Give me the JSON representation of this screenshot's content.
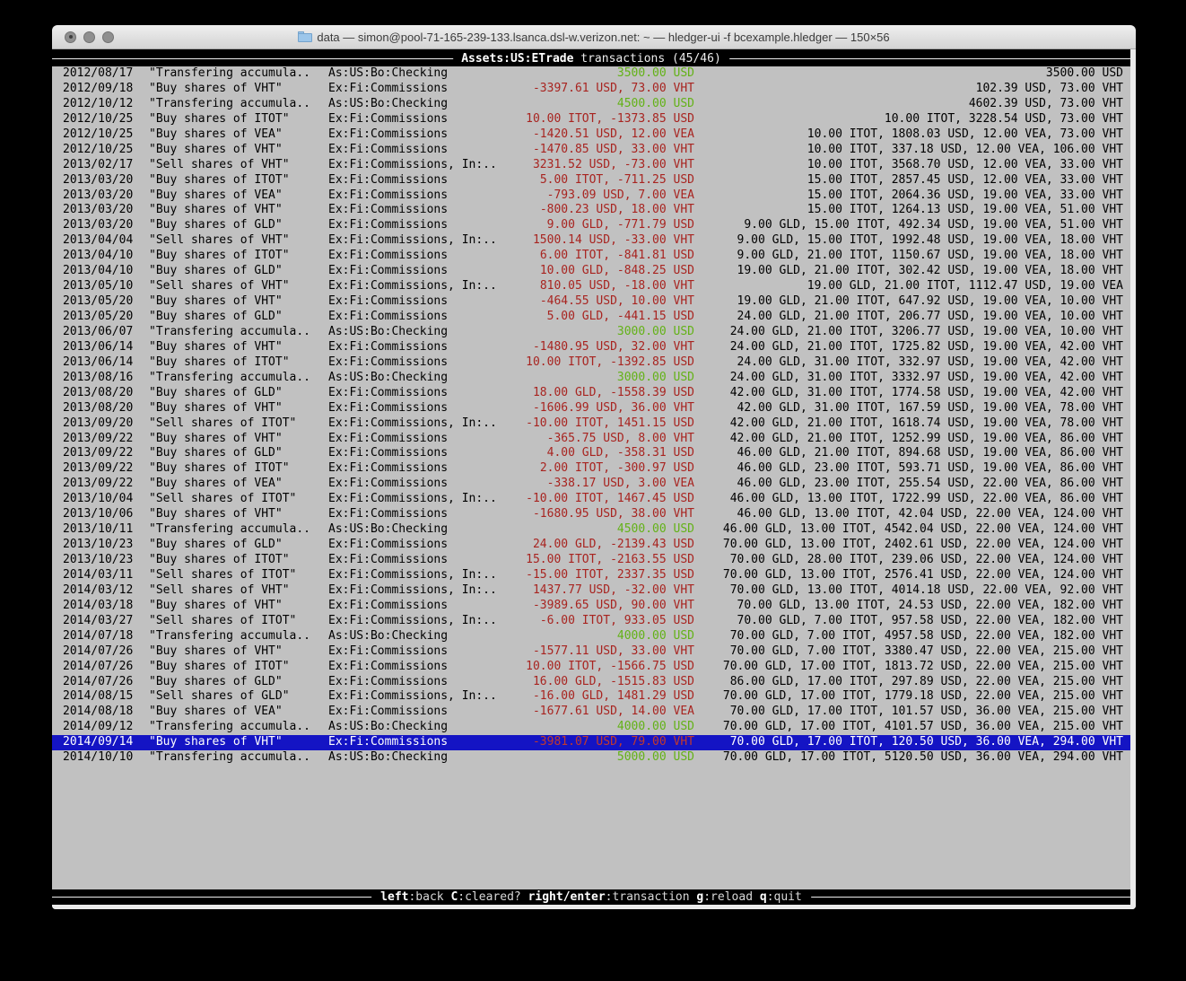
{
  "window": {
    "title": "data — simon@pool-71-165-239-133.lsanca.dsl-w.verizon.net: ~ — hledger-ui -f bcexample.hledger — 150×56",
    "buttons": [
      "close",
      "minimize",
      "zoom"
    ]
  },
  "screen": {
    "title_account": "Assets:US:ETrade",
    "title_rest": " transactions (45/46)",
    "position": "45/46"
  },
  "footer": {
    "hints": [
      {
        "key": "left",
        "label": "back"
      },
      {
        "key": "C",
        "label": "cleared?"
      },
      {
        "key": "right/enter",
        "label": "transaction"
      },
      {
        "key": "g",
        "label": "reload"
      },
      {
        "key": "q",
        "label": "quit"
      }
    ]
  },
  "colors": {
    "content_bg": "#c1c1c1",
    "band_bg": "#000000",
    "rule": "#ececec",
    "amount_negative": "#a82420",
    "amount_positive": "#63b217",
    "selected_bg": "#1414c4",
    "selected_fg": "#ffffff"
  },
  "table": {
    "columns": [
      "date",
      "description",
      "account",
      "change",
      "balance"
    ],
    "selected_index": 44,
    "rows": [
      {
        "date": "2012/08/17",
        "description": "\"Transfering accumula..",
        "account": "As:US:Bo:Checking",
        "change": "3500.00 USD",
        "change_color": "green",
        "balance": "3500.00 USD"
      },
      {
        "date": "2012/09/18",
        "description": "\"Buy shares of VHT\"",
        "account": "Ex:Fi:Commissions",
        "change": "-3397.61 USD, 73.00 VHT",
        "change_color": "red",
        "balance": "102.39 USD, 73.00 VHT"
      },
      {
        "date": "2012/10/12",
        "description": "\"Transfering accumula..",
        "account": "As:US:Bo:Checking",
        "change": "4500.00 USD",
        "change_color": "green",
        "balance": "4602.39 USD, 73.00 VHT"
      },
      {
        "date": "2012/10/25",
        "description": "\"Buy shares of ITOT\"",
        "account": "Ex:Fi:Commissions",
        "change": "10.00 ITOT, -1373.85 USD",
        "change_color": "red",
        "balance": "10.00 ITOT, 3228.54 USD, 73.00 VHT"
      },
      {
        "date": "2012/10/25",
        "description": "\"Buy shares of VEA\"",
        "account": "Ex:Fi:Commissions",
        "change": "-1420.51 USD, 12.00 VEA",
        "change_color": "red",
        "balance": "10.00 ITOT, 1808.03 USD, 12.00 VEA, 73.00 VHT"
      },
      {
        "date": "2012/10/25",
        "description": "\"Buy shares of VHT\"",
        "account": "Ex:Fi:Commissions",
        "change": "-1470.85 USD, 33.00 VHT",
        "change_color": "red",
        "balance": "10.00 ITOT, 337.18 USD, 12.00 VEA, 106.00 VHT"
      },
      {
        "date": "2013/02/17",
        "description": "\"Sell shares of VHT\"",
        "account": "Ex:Fi:Commissions, In:..",
        "change": "3231.52 USD, -73.00 VHT",
        "change_color": "red",
        "balance": "10.00 ITOT, 3568.70 USD, 12.00 VEA, 33.00 VHT"
      },
      {
        "date": "2013/03/20",
        "description": "\"Buy shares of ITOT\"",
        "account": "Ex:Fi:Commissions",
        "change": "5.00 ITOT, -711.25 USD",
        "change_color": "red",
        "balance": "15.00 ITOT, 2857.45 USD, 12.00 VEA, 33.00 VHT"
      },
      {
        "date": "2013/03/20",
        "description": "\"Buy shares of VEA\"",
        "account": "Ex:Fi:Commissions",
        "change": "-793.09 USD, 7.00 VEA",
        "change_color": "red",
        "balance": "15.00 ITOT, 2064.36 USD, 19.00 VEA, 33.00 VHT"
      },
      {
        "date": "2013/03/20",
        "description": "\"Buy shares of VHT\"",
        "account": "Ex:Fi:Commissions",
        "change": "-800.23 USD, 18.00 VHT",
        "change_color": "red",
        "balance": "15.00 ITOT, 1264.13 USD, 19.00 VEA, 51.00 VHT"
      },
      {
        "date": "2013/03/20",
        "description": "\"Buy shares of GLD\"",
        "account": "Ex:Fi:Commissions",
        "change": "9.00 GLD, -771.79 USD",
        "change_color": "red",
        "balance": "9.00 GLD, 15.00 ITOT, 492.34 USD, 19.00 VEA, 51.00 VHT"
      },
      {
        "date": "2013/04/04",
        "description": "\"Sell shares of VHT\"",
        "account": "Ex:Fi:Commissions, In:..",
        "change": "1500.14 USD, -33.00 VHT",
        "change_color": "red",
        "balance": "9.00 GLD, 15.00 ITOT, 1992.48 USD, 19.00 VEA, 18.00 VHT"
      },
      {
        "date": "2013/04/10",
        "description": "\"Buy shares of ITOT\"",
        "account": "Ex:Fi:Commissions",
        "change": "6.00 ITOT, -841.81 USD",
        "change_color": "red",
        "balance": "9.00 GLD, 21.00 ITOT, 1150.67 USD, 19.00 VEA, 18.00 VHT"
      },
      {
        "date": "2013/04/10",
        "description": "\"Buy shares of GLD\"",
        "account": "Ex:Fi:Commissions",
        "change": "10.00 GLD, -848.25 USD",
        "change_color": "red",
        "balance": "19.00 GLD, 21.00 ITOT, 302.42 USD, 19.00 VEA, 18.00 VHT"
      },
      {
        "date": "2013/05/10",
        "description": "\"Sell shares of VHT\"",
        "account": "Ex:Fi:Commissions, In:..",
        "change": "810.05 USD, -18.00 VHT",
        "change_color": "red",
        "balance": "19.00 GLD, 21.00 ITOT, 1112.47 USD, 19.00 VEA"
      },
      {
        "date": "2013/05/20",
        "description": "\"Buy shares of VHT\"",
        "account": "Ex:Fi:Commissions",
        "change": "-464.55 USD, 10.00 VHT",
        "change_color": "red",
        "balance": "19.00 GLD, 21.00 ITOT, 647.92 USD, 19.00 VEA, 10.00 VHT"
      },
      {
        "date": "2013/05/20",
        "description": "\"Buy shares of GLD\"",
        "account": "Ex:Fi:Commissions",
        "change": "5.00 GLD, -441.15 USD",
        "change_color": "red",
        "balance": "24.00 GLD, 21.00 ITOT, 206.77 USD, 19.00 VEA, 10.00 VHT"
      },
      {
        "date": "2013/06/07",
        "description": "\"Transfering accumula..",
        "account": "As:US:Bo:Checking",
        "change": "3000.00 USD",
        "change_color": "green",
        "balance": "24.00 GLD, 21.00 ITOT, 3206.77 USD, 19.00 VEA, 10.00 VHT"
      },
      {
        "date": "2013/06/14",
        "description": "\"Buy shares of VHT\"",
        "account": "Ex:Fi:Commissions",
        "change": "-1480.95 USD, 32.00 VHT",
        "change_color": "red",
        "balance": "24.00 GLD, 21.00 ITOT, 1725.82 USD, 19.00 VEA, 42.00 VHT"
      },
      {
        "date": "2013/06/14",
        "description": "\"Buy shares of ITOT\"",
        "account": "Ex:Fi:Commissions",
        "change": "10.00 ITOT, -1392.85 USD",
        "change_color": "red",
        "balance": "24.00 GLD, 31.00 ITOT, 332.97 USD, 19.00 VEA, 42.00 VHT"
      },
      {
        "date": "2013/08/16",
        "description": "\"Transfering accumula..",
        "account": "As:US:Bo:Checking",
        "change": "3000.00 USD",
        "change_color": "green",
        "balance": "24.00 GLD, 31.00 ITOT, 3332.97 USD, 19.00 VEA, 42.00 VHT"
      },
      {
        "date": "2013/08/20",
        "description": "\"Buy shares of GLD\"",
        "account": "Ex:Fi:Commissions",
        "change": "18.00 GLD, -1558.39 USD",
        "change_color": "red",
        "balance": "42.00 GLD, 31.00 ITOT, 1774.58 USD, 19.00 VEA, 42.00 VHT"
      },
      {
        "date": "2013/08/20",
        "description": "\"Buy shares of VHT\"",
        "account": "Ex:Fi:Commissions",
        "change": "-1606.99 USD, 36.00 VHT",
        "change_color": "red",
        "balance": "42.00 GLD, 31.00 ITOT, 167.59 USD, 19.00 VEA, 78.00 VHT"
      },
      {
        "date": "2013/09/20",
        "description": "\"Sell shares of ITOT\"",
        "account": "Ex:Fi:Commissions, In:..",
        "change": "-10.00 ITOT, 1451.15 USD",
        "change_color": "red",
        "balance": "42.00 GLD, 21.00 ITOT, 1618.74 USD, 19.00 VEA, 78.00 VHT"
      },
      {
        "date": "2013/09/22",
        "description": "\"Buy shares of VHT\"",
        "account": "Ex:Fi:Commissions",
        "change": "-365.75 USD, 8.00 VHT",
        "change_color": "red",
        "balance": "42.00 GLD, 21.00 ITOT, 1252.99 USD, 19.00 VEA, 86.00 VHT"
      },
      {
        "date": "2013/09/22",
        "description": "\"Buy shares of GLD\"",
        "account": "Ex:Fi:Commissions",
        "change": "4.00 GLD, -358.31 USD",
        "change_color": "red",
        "balance": "46.00 GLD, 21.00 ITOT, 894.68 USD, 19.00 VEA, 86.00 VHT"
      },
      {
        "date": "2013/09/22",
        "description": "\"Buy shares of ITOT\"",
        "account": "Ex:Fi:Commissions",
        "change": "2.00 ITOT, -300.97 USD",
        "change_color": "red",
        "balance": "46.00 GLD, 23.00 ITOT, 593.71 USD, 19.00 VEA, 86.00 VHT"
      },
      {
        "date": "2013/09/22",
        "description": "\"Buy shares of VEA\"",
        "account": "Ex:Fi:Commissions",
        "change": "-338.17 USD, 3.00 VEA",
        "change_color": "red",
        "balance": "46.00 GLD, 23.00 ITOT, 255.54 USD, 22.00 VEA, 86.00 VHT"
      },
      {
        "date": "2013/10/04",
        "description": "\"Sell shares of ITOT\"",
        "account": "Ex:Fi:Commissions, In:..",
        "change": "-10.00 ITOT, 1467.45 USD",
        "change_color": "red",
        "balance": "46.00 GLD, 13.00 ITOT, 1722.99 USD, 22.00 VEA, 86.00 VHT"
      },
      {
        "date": "2013/10/06",
        "description": "\"Buy shares of VHT\"",
        "account": "Ex:Fi:Commissions",
        "change": "-1680.95 USD, 38.00 VHT",
        "change_color": "red",
        "balance": "46.00 GLD, 13.00 ITOT, 42.04 USD, 22.00 VEA, 124.00 VHT"
      },
      {
        "date": "2013/10/11",
        "description": "\"Transfering accumula..",
        "account": "As:US:Bo:Checking",
        "change": "4500.00 USD",
        "change_color": "green",
        "balance": "46.00 GLD, 13.00 ITOT, 4542.04 USD, 22.00 VEA, 124.00 VHT"
      },
      {
        "date": "2013/10/23",
        "description": "\"Buy shares of GLD\"",
        "account": "Ex:Fi:Commissions",
        "change": "24.00 GLD, -2139.43 USD",
        "change_color": "red",
        "balance": "70.00 GLD, 13.00 ITOT, 2402.61 USD, 22.00 VEA, 124.00 VHT"
      },
      {
        "date": "2013/10/23",
        "description": "\"Buy shares of ITOT\"",
        "account": "Ex:Fi:Commissions",
        "change": "15.00 ITOT, -2163.55 USD",
        "change_color": "red",
        "balance": "70.00 GLD, 28.00 ITOT, 239.06 USD, 22.00 VEA, 124.00 VHT"
      },
      {
        "date": "2014/03/11",
        "description": "\"Sell shares of ITOT\"",
        "account": "Ex:Fi:Commissions, In:..",
        "change": "-15.00 ITOT, 2337.35 USD",
        "change_color": "red",
        "balance": "70.00 GLD, 13.00 ITOT, 2576.41 USD, 22.00 VEA, 124.00 VHT"
      },
      {
        "date": "2014/03/12",
        "description": "\"Sell shares of VHT\"",
        "account": "Ex:Fi:Commissions, In:..",
        "change": "1437.77 USD, -32.00 VHT",
        "change_color": "red",
        "balance": "70.00 GLD, 13.00 ITOT, 4014.18 USD, 22.00 VEA, 92.00 VHT"
      },
      {
        "date": "2014/03/18",
        "description": "\"Buy shares of VHT\"",
        "account": "Ex:Fi:Commissions",
        "change": "-3989.65 USD, 90.00 VHT",
        "change_color": "red",
        "balance": "70.00 GLD, 13.00 ITOT, 24.53 USD, 22.00 VEA, 182.00 VHT"
      },
      {
        "date": "2014/03/27",
        "description": "\"Sell shares of ITOT\"",
        "account": "Ex:Fi:Commissions, In:..",
        "change": "-6.00 ITOT, 933.05 USD",
        "change_color": "red",
        "balance": "70.00 GLD, 7.00 ITOT, 957.58 USD, 22.00 VEA, 182.00 VHT"
      },
      {
        "date": "2014/07/18",
        "description": "\"Transfering accumula..",
        "account": "As:US:Bo:Checking",
        "change": "4000.00 USD",
        "change_color": "green",
        "balance": "70.00 GLD, 7.00 ITOT, 4957.58 USD, 22.00 VEA, 182.00 VHT"
      },
      {
        "date": "2014/07/26",
        "description": "\"Buy shares of VHT\"",
        "account": "Ex:Fi:Commissions",
        "change": "-1577.11 USD, 33.00 VHT",
        "change_color": "red",
        "balance": "70.00 GLD, 7.00 ITOT, 3380.47 USD, 22.00 VEA, 215.00 VHT"
      },
      {
        "date": "2014/07/26",
        "description": "\"Buy shares of ITOT\"",
        "account": "Ex:Fi:Commissions",
        "change": "10.00 ITOT, -1566.75 USD",
        "change_color": "red",
        "balance": "70.00 GLD, 17.00 ITOT, 1813.72 USD, 22.00 VEA, 215.00 VHT"
      },
      {
        "date": "2014/07/26",
        "description": "\"Buy shares of GLD\"",
        "account": "Ex:Fi:Commissions",
        "change": "16.00 GLD, -1515.83 USD",
        "change_color": "red",
        "balance": "86.00 GLD, 17.00 ITOT, 297.89 USD, 22.00 VEA, 215.00 VHT"
      },
      {
        "date": "2014/08/15",
        "description": "\"Sell shares of GLD\"",
        "account": "Ex:Fi:Commissions, In:..",
        "change": "-16.00 GLD, 1481.29 USD",
        "change_color": "red",
        "balance": "70.00 GLD, 17.00 ITOT, 1779.18 USD, 22.00 VEA, 215.00 VHT"
      },
      {
        "date": "2014/08/18",
        "description": "\"Buy shares of VEA\"",
        "account": "Ex:Fi:Commissions",
        "change": "-1677.61 USD, 14.00 VEA",
        "change_color": "red",
        "balance": "70.00 GLD, 17.00 ITOT, 101.57 USD, 36.00 VEA, 215.00 VHT"
      },
      {
        "date": "2014/09/12",
        "description": "\"Transfering accumula..",
        "account": "As:US:Bo:Checking",
        "change": "4000.00 USD",
        "change_color": "green",
        "balance": "70.00 GLD, 17.00 ITOT, 4101.57 USD, 36.00 VEA, 215.00 VHT"
      },
      {
        "date": "2014/09/14",
        "description": "\"Buy shares of VHT\"",
        "account": "Ex:Fi:Commissions",
        "change": "-3981.07 USD, 79.00 VHT",
        "change_color": "red",
        "balance": "70.00 GLD, 17.00 ITOT, 120.50 USD, 36.00 VEA, 294.00 VHT"
      },
      {
        "date": "2014/10/10",
        "description": "\"Transfering accumula..",
        "account": "As:US:Bo:Checking",
        "change": "5000.00 USD",
        "change_color": "green",
        "balance": "70.00 GLD, 17.00 ITOT, 5120.50 USD, 36.00 VEA, 294.00 VHT"
      }
    ]
  }
}
